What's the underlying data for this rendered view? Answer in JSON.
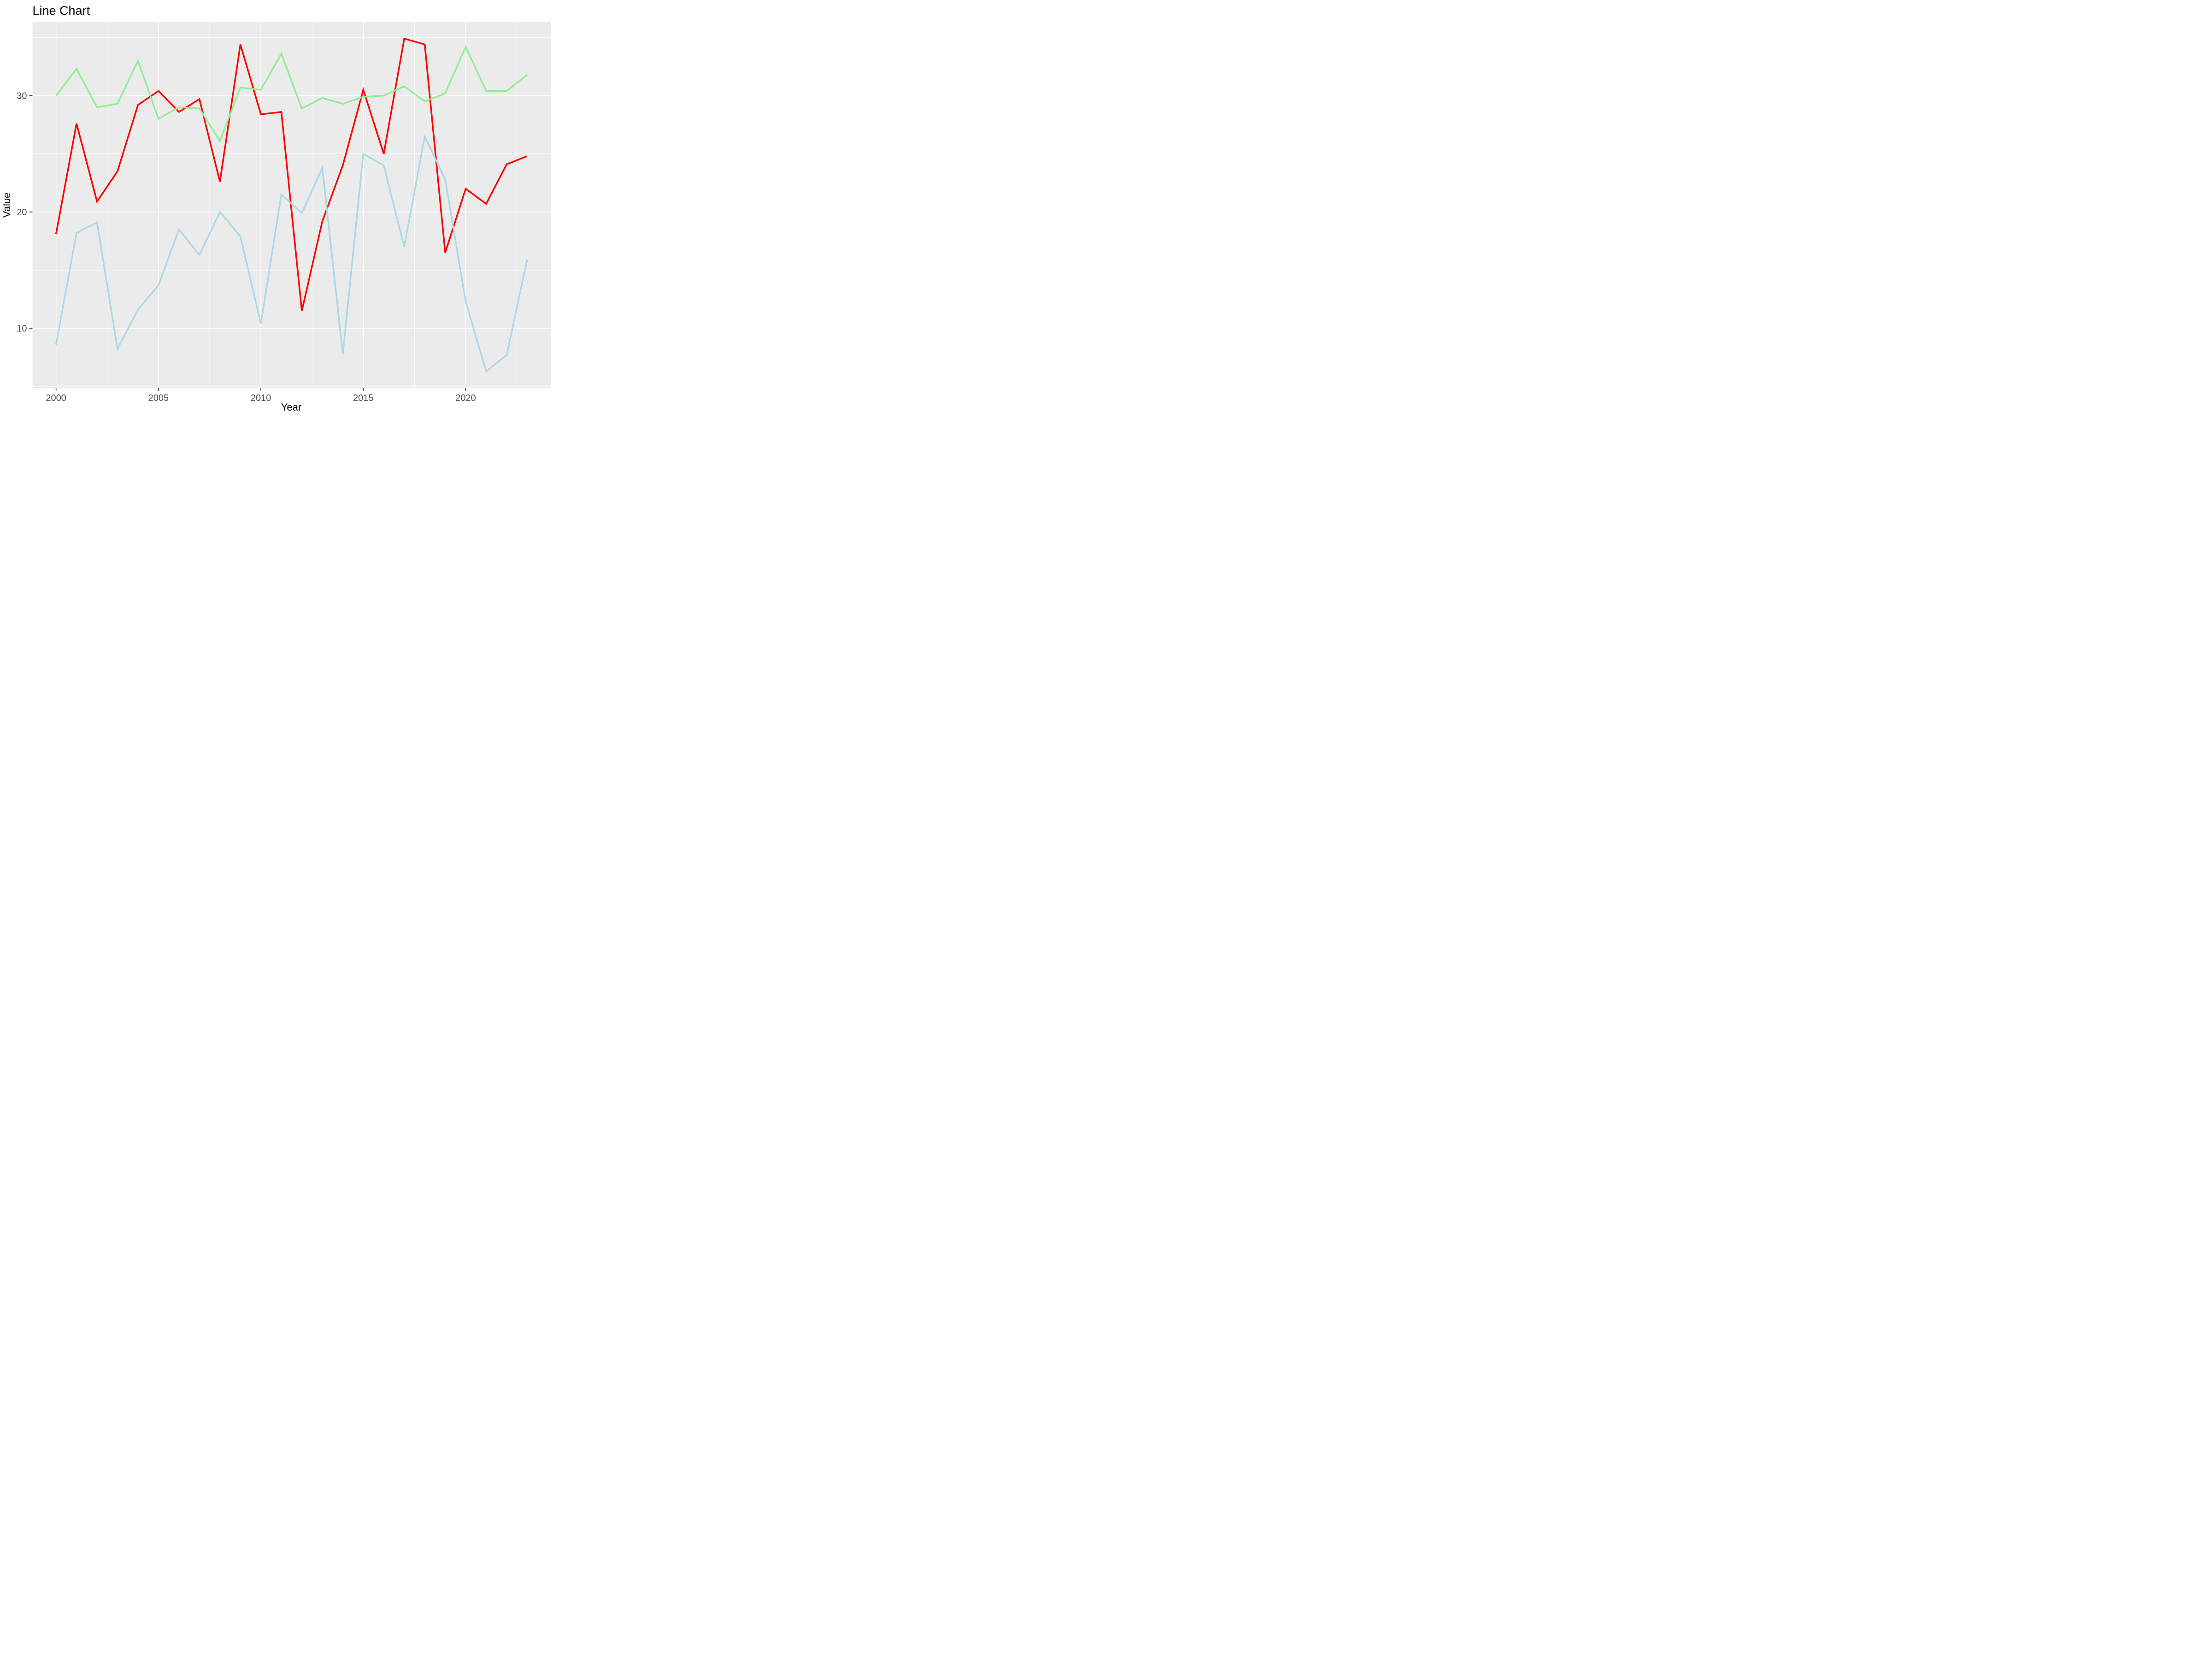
{
  "title": "Line Chart",
  "chart_data": {
    "type": "line",
    "title": "Line Chart",
    "xlabel": "Year",
    "ylabel": "Value",
    "x": [
      2000,
      2001,
      2002,
      2003,
      2004,
      2005,
      2006,
      2007,
      2008,
      2009,
      2010,
      2011,
      2012,
      2013,
      2014,
      2015,
      2016,
      2017,
      2018,
      2019,
      2020,
      2021,
      2022,
      2023
    ],
    "series": [
      {
        "name": "red-series",
        "color": "#FF0000",
        "values": [
          18.1,
          27.6,
          20.9,
          23.5,
          29.2,
          30.4,
          28.6,
          29.7,
          22.6,
          34.4,
          28.4,
          28.6,
          11.5,
          19.2,
          24.0,
          30.5,
          25.0,
          34.9,
          34.4,
          16.5,
          22.0,
          20.7,
          24.1,
          24.8
        ]
      },
      {
        "name": "lightgreen-series",
        "color": "#90EE90",
        "values": [
          30.0,
          32.3,
          29.0,
          29.3,
          33.0,
          28.0,
          29.0,
          28.9,
          26.1,
          30.7,
          30.5,
          33.6,
          28.9,
          29.8,
          29.3,
          29.9,
          30.0,
          30.8,
          29.5,
          30.2,
          34.2,
          30.4,
          30.4,
          31.8
        ]
      },
      {
        "name": "lightblue-series",
        "color": "#ADD8E6",
        "values": [
          8.6,
          18.2,
          19.1,
          8.25,
          11.6,
          13.7,
          18.5,
          16.3,
          20.0,
          17.9,
          10.4,
          21.5,
          19.9,
          23.8,
          7.8,
          25.0,
          24.0,
          17.0,
          26.5,
          22.8,
          12.3,
          6.3,
          7.7,
          15.9
        ]
      }
    ],
    "x_ticks": [
      2000,
      2005,
      2010,
      2015,
      2020
    ],
    "y_ticks": [
      10,
      20,
      30
    ],
    "x_minor_gridlines": [
      2002.5,
      2007.5,
      2012.5,
      2017.5,
      2022.5
    ],
    "y_minor_gridlines": [
      5,
      15,
      25,
      35
    ],
    "xlim": [
      1998.85,
      2024.15
    ],
    "ylim": [
      4.87,
      36.33
    ],
    "grid": "on",
    "legend_position": "none",
    "panel_background": "#EBEBEB",
    "gridline_color": "#FFFFFF",
    "tick_color": "#333333",
    "tick_label_color": "#4D4D4D",
    "title_color": "#000000"
  }
}
